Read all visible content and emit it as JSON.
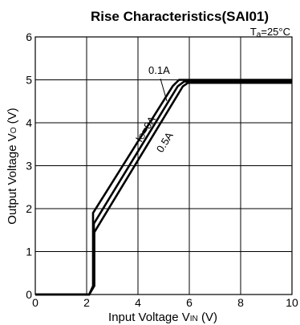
{
  "chart_data": {
    "type": "line",
    "title": "Rise Characteristics(SAI01)",
    "condition": {
      "main": "T",
      "sub": "a",
      "rest": "=25°C"
    },
    "xlabel": {
      "main": "Input Voltage V",
      "sub": "IN",
      "rest": " (V)"
    },
    "ylabel": {
      "main": "Output Voltage V",
      "sub": "O",
      "rest": " (V)"
    },
    "xlim": [
      0,
      10
    ],
    "ylim": [
      0,
      6
    ],
    "xticks": [
      "0",
      "2",
      "4",
      "6",
      "8",
      "10"
    ],
    "yticks": [
      "0",
      "1",
      "2",
      "3",
      "4",
      "5",
      "6"
    ],
    "grid": true,
    "series": [
      {
        "name": "Io=0A",
        "x": [
          0,
          2.1,
          2.25,
          2.25,
          5.35,
          5.6,
          10
        ],
        "y": [
          0,
          0,
          0.2,
          1.9,
          4.85,
          5.0,
          5.0
        ]
      },
      {
        "name": "0.1A",
        "x": [
          0,
          2.1,
          2.28,
          2.28,
          5.55,
          5.8,
          10
        ],
        "y": [
          0,
          0,
          0.2,
          1.65,
          4.85,
          4.96,
          4.96
        ]
      },
      {
        "name": "0.5A",
        "x": [
          0,
          2.1,
          2.3,
          2.3,
          5.75,
          5.95,
          10
        ],
        "y": [
          0,
          0,
          0.2,
          1.45,
          4.85,
          4.93,
          4.93
        ]
      }
    ],
    "annotations": {
      "io": {
        "main": "I",
        "sub": "O",
        "rest": "=0A"
      },
      "a01": "0.1A",
      "a05": "0.5A"
    }
  }
}
